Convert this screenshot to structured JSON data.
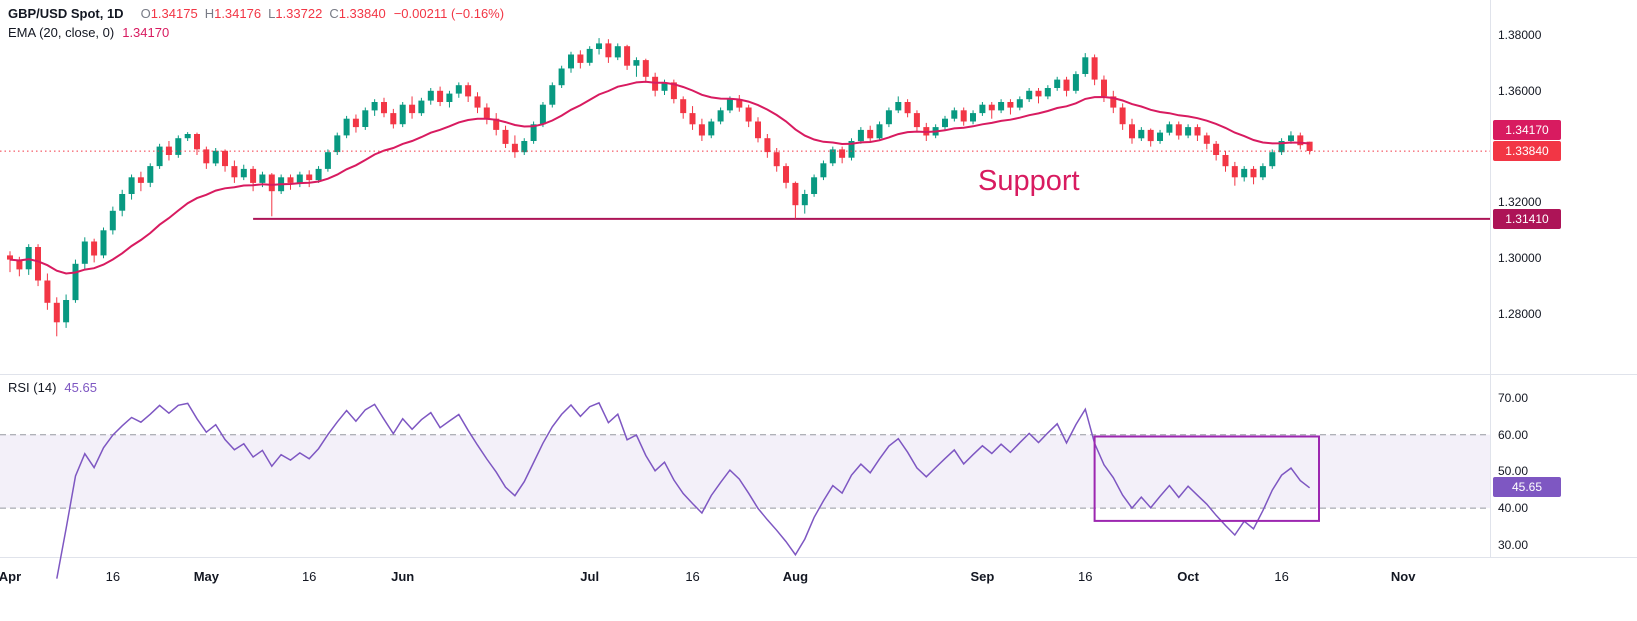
{
  "legend": {
    "title": "GBP/USD Spot, 1D",
    "open_label": "O",
    "open_value": "1.34175",
    "high_label": "H",
    "high_value": "1.34176",
    "low_label": "L",
    "low_value": "1.33722",
    "close_label": "C",
    "close_value": "1.33840",
    "change": "−0.00211 (−0.16%)",
    "ema_title": "EMA (20, close, 0)",
    "ema_value": "1.34170"
  },
  "rsi_legend": {
    "title": "RSI (14)",
    "value": "45.65"
  },
  "badges": {
    "ema": "1.34170",
    "last": "1.33840",
    "support": "1.31410",
    "rsi": "45.65"
  },
  "annotation": {
    "support_label": "Support"
  },
  "colors": {
    "up": "#089981",
    "down": "#f23645",
    "ema": "#d81b60",
    "support": "#ad1457",
    "annotation": "#d81b60",
    "last_price": "#f23645",
    "rsi": "#7e57c2",
    "rsi_band_fill": "rgba(126,87,194,0.09)",
    "rsi_band_line": "#9598a1",
    "box": "#9c27b0",
    "separator": "#e0e3eb",
    "axis_text": "#131722"
  },
  "chart_data": [
    {
      "type": "candlestick",
      "title": "GBP/USD Spot, 1D",
      "pane": "price",
      "grid": false,
      "legend_position": "top-left",
      "ylim": [
        1.259,
        1.3925
      ],
      "y_ticks": [
        "1.38000",
        "1.36000",
        "1.34000",
        "1.32000",
        "1.30000",
        "1.28000"
      ],
      "x_ticks": [
        {
          "label": "Apr",
          "index": 0
        },
        {
          "label": "16",
          "index": 11
        },
        {
          "label": "May",
          "index": 21
        },
        {
          "label": "16",
          "index": 32
        },
        {
          "label": "Jun",
          "index": 42
        },
        {
          "label": "Jul",
          "index": 62
        },
        {
          "label": "16",
          "index": 73
        },
        {
          "label": "Aug",
          "index": 84
        },
        {
          "label": "Sep",
          "index": 104
        },
        {
          "label": "16",
          "index": 115
        },
        {
          "label": "Oct",
          "index": 126
        },
        {
          "label": "16",
          "index": 136
        },
        {
          "label": "Nov",
          "index": 149
        }
      ],
      "overlays": [
        {
          "name": "EMA",
          "period": 20,
          "source": "close",
          "value": 1.3417
        }
      ],
      "levels": {
        "support": 1.3141,
        "support_start_index": 26,
        "last_price": 1.3384
      },
      "ohlc": [
        [
          1.301,
          1.3025,
          1.295,
          1.2995
        ],
        [
          1.2995,
          1.3005,
          1.2935,
          1.296
        ],
        [
          1.296,
          1.305,
          1.294,
          1.304
        ],
        [
          1.304,
          1.305,
          1.29,
          1.292
        ],
        [
          1.292,
          1.2945,
          1.2815,
          1.284
        ],
        [
          1.284,
          1.286,
          1.272,
          1.277
        ],
        [
          1.277,
          1.287,
          1.275,
          1.285
        ],
        [
          1.285,
          1.2995,
          1.284,
          1.298
        ],
        [
          1.298,
          1.3075,
          1.296,
          1.306
        ],
        [
          1.306,
          1.307,
          1.2985,
          1.301
        ],
        [
          1.301,
          1.311,
          1.3,
          1.31
        ],
        [
          1.31,
          1.3185,
          1.3085,
          1.317
        ],
        [
          1.317,
          1.3245,
          1.315,
          1.323
        ],
        [
          1.323,
          1.33,
          1.321,
          1.329
        ],
        [
          1.329,
          1.331,
          1.324,
          1.327
        ],
        [
          1.327,
          1.334,
          1.3255,
          1.333
        ],
        [
          1.333,
          1.341,
          1.332,
          1.34
        ],
        [
          1.34,
          1.342,
          1.335,
          1.337
        ],
        [
          1.337,
          1.344,
          1.336,
          1.343
        ],
        [
          1.343,
          1.3452,
          1.342,
          1.3445
        ],
        [
          1.3445,
          1.345,
          1.337,
          1.339
        ],
        [
          1.339,
          1.34,
          1.332,
          1.334
        ],
        [
          1.334,
          1.3395,
          1.333,
          1.3385
        ],
        [
          1.3385,
          1.339,
          1.331,
          1.333
        ],
        [
          1.333,
          1.335,
          1.327,
          1.329
        ],
        [
          1.329,
          1.3335,
          1.328,
          1.332
        ],
        [
          1.332,
          1.333,
          1.324,
          1.327
        ],
        [
          1.327,
          1.331,
          1.3255,
          1.33
        ],
        [
          1.33,
          1.3305,
          1.315,
          1.324
        ],
        [
          1.324,
          1.33,
          1.323,
          1.329
        ],
        [
          1.329,
          1.33,
          1.3245,
          1.327
        ],
        [
          1.327,
          1.331,
          1.3255,
          1.33
        ],
        [
          1.33,
          1.3315,
          1.3255,
          1.328
        ],
        [
          1.328,
          1.333,
          1.327,
          1.332
        ],
        [
          1.332,
          1.339,
          1.331,
          1.338
        ],
        [
          1.338,
          1.345,
          1.337,
          1.344
        ],
        [
          1.344,
          1.351,
          1.343,
          1.35
        ],
        [
          1.35,
          1.3515,
          1.345,
          1.347
        ],
        [
          1.347,
          1.354,
          1.346,
          1.353
        ],
        [
          1.353,
          1.357,
          1.351,
          1.356
        ],
        [
          1.356,
          1.3575,
          1.3505,
          1.352
        ],
        [
          1.352,
          1.3535,
          1.3465,
          1.348
        ],
        [
          1.348,
          1.356,
          1.347,
          1.355
        ],
        [
          1.355,
          1.358,
          1.35,
          1.352
        ],
        [
          1.352,
          1.3575,
          1.351,
          1.3565
        ],
        [
          1.3565,
          1.361,
          1.355,
          1.36
        ],
        [
          1.36,
          1.3615,
          1.3545,
          1.356
        ],
        [
          1.356,
          1.36,
          1.354,
          1.359
        ],
        [
          1.359,
          1.363,
          1.3575,
          1.362
        ],
        [
          1.362,
          1.363,
          1.356,
          1.358
        ],
        [
          1.358,
          1.3595,
          1.352,
          1.354
        ],
        [
          1.354,
          1.3555,
          1.348,
          1.35
        ],
        [
          1.35,
          1.352,
          1.344,
          1.346
        ],
        [
          1.346,
          1.3475,
          1.3395,
          1.341
        ],
        [
          1.341,
          1.344,
          1.336,
          1.338
        ],
        [
          1.338,
          1.343,
          1.337,
          1.342
        ],
        [
          1.342,
          1.349,
          1.341,
          1.348
        ],
        [
          1.348,
          1.356,
          1.347,
          1.355
        ],
        [
          1.355,
          1.363,
          1.354,
          1.362
        ],
        [
          1.362,
          1.369,
          1.361,
          1.368
        ],
        [
          1.368,
          1.374,
          1.3665,
          1.373
        ],
        [
          1.373,
          1.3745,
          1.368,
          1.37
        ],
        [
          1.37,
          1.376,
          1.369,
          1.375
        ],
        [
          1.375,
          1.3789,
          1.373,
          1.377
        ],
        [
          1.377,
          1.3785,
          1.37,
          1.372
        ],
        [
          1.372,
          1.377,
          1.371,
          1.376
        ],
        [
          1.376,
          1.3765,
          1.3675,
          1.369
        ],
        [
          1.369,
          1.372,
          1.365,
          1.371
        ],
        [
          1.371,
          1.3715,
          1.363,
          1.365
        ],
        [
          1.365,
          1.3665,
          1.358,
          1.36
        ],
        [
          1.36,
          1.364,
          1.3585,
          1.363
        ],
        [
          1.363,
          1.364,
          1.3555,
          1.357
        ],
        [
          1.357,
          1.358,
          1.35,
          1.352
        ],
        [
          1.352,
          1.3545,
          1.346,
          1.348
        ],
        [
          1.348,
          1.35,
          1.342,
          1.344
        ],
        [
          1.344,
          1.35,
          1.343,
          1.349
        ],
        [
          1.349,
          1.354,
          1.348,
          1.353
        ],
        [
          1.353,
          1.358,
          1.352,
          1.357
        ],
        [
          1.357,
          1.3585,
          1.3525,
          1.354
        ],
        [
          1.354,
          1.355,
          1.347,
          1.349
        ],
        [
          1.349,
          1.3505,
          1.3415,
          1.343
        ],
        [
          1.343,
          1.3445,
          1.336,
          1.338
        ],
        [
          1.338,
          1.3395,
          1.331,
          1.333
        ],
        [
          1.333,
          1.334,
          1.325,
          1.327
        ],
        [
          1.327,
          1.3275,
          1.3142,
          1.319
        ],
        [
          1.319,
          1.3245,
          1.316,
          1.323
        ],
        [
          1.323,
          1.33,
          1.322,
          1.329
        ],
        [
          1.329,
          1.335,
          1.328,
          1.334
        ],
        [
          1.334,
          1.34,
          1.333,
          1.339
        ],
        [
          1.339,
          1.34,
          1.334,
          1.336
        ],
        [
          1.336,
          1.343,
          1.335,
          1.342
        ],
        [
          1.342,
          1.347,
          1.341,
          1.346
        ],
        [
          1.346,
          1.3475,
          1.3415,
          1.343
        ],
        [
          1.343,
          1.349,
          1.342,
          1.348
        ],
        [
          1.348,
          1.354,
          1.347,
          1.353
        ],
        [
          1.353,
          1.358,
          1.352,
          1.356
        ],
        [
          1.356,
          1.357,
          1.3505,
          1.352
        ],
        [
          1.352,
          1.353,
          1.3455,
          1.347
        ],
        [
          1.347,
          1.3485,
          1.342,
          1.344
        ],
        [
          1.344,
          1.348,
          1.343,
          1.347
        ],
        [
          1.347,
          1.351,
          1.346,
          1.35
        ],
        [
          1.35,
          1.354,
          1.349,
          1.353
        ],
        [
          1.353,
          1.354,
          1.3475,
          1.349
        ],
        [
          1.349,
          1.353,
          1.348,
          1.352
        ],
        [
          1.352,
          1.356,
          1.351,
          1.355
        ],
        [
          1.355,
          1.356,
          1.35,
          1.353
        ],
        [
          1.353,
          1.357,
          1.352,
          1.356
        ],
        [
          1.356,
          1.357,
          1.3515,
          1.354
        ],
        [
          1.354,
          1.358,
          1.353,
          1.357
        ],
        [
          1.357,
          1.361,
          1.356,
          1.36
        ],
        [
          1.36,
          1.361,
          1.3555,
          1.358
        ],
        [
          1.358,
          1.362,
          1.357,
          1.361
        ],
        [
          1.361,
          1.365,
          1.36,
          1.364
        ],
        [
          1.364,
          1.365,
          1.358,
          1.36
        ],
        [
          1.36,
          1.367,
          1.359,
          1.366
        ],
        [
          1.366,
          1.3735,
          1.365,
          1.372
        ],
        [
          1.372,
          1.373,
          1.362,
          1.364
        ],
        [
          1.364,
          1.3655,
          1.356,
          1.358
        ],
        [
          1.358,
          1.36,
          1.352,
          1.354
        ],
        [
          1.354,
          1.3555,
          1.346,
          1.348
        ],
        [
          1.348,
          1.35,
          1.341,
          1.343
        ],
        [
          1.343,
          1.347,
          1.342,
          1.346
        ],
        [
          1.346,
          1.3465,
          1.34,
          1.342
        ],
        [
          1.342,
          1.346,
          1.341,
          1.345
        ],
        [
          1.345,
          1.349,
          1.344,
          1.348
        ],
        [
          1.348,
          1.349,
          1.3425,
          1.344
        ],
        [
          1.344,
          1.348,
          1.343,
          1.347
        ],
        [
          1.347,
          1.348,
          1.342,
          1.344
        ],
        [
          1.344,
          1.345,
          1.339,
          1.341
        ],
        [
          1.341,
          1.342,
          1.335,
          1.337
        ],
        [
          1.337,
          1.3385,
          1.331,
          1.333
        ],
        [
          1.333,
          1.3345,
          1.326,
          1.329
        ],
        [
          1.329,
          1.333,
          1.3275,
          1.332
        ],
        [
          1.332,
          1.333,
          1.3265,
          1.329
        ],
        [
          1.329,
          1.334,
          1.328,
          1.333
        ],
        [
          1.333,
          1.339,
          1.332,
          1.338
        ],
        [
          1.338,
          1.343,
          1.337,
          1.342
        ],
        [
          1.342,
          1.3455,
          1.341,
          1.344
        ],
        [
          1.344,
          1.345,
          1.339,
          1.3405
        ],
        [
          1.34175,
          1.34176,
          1.33722,
          1.3384
        ]
      ]
    },
    {
      "type": "line",
      "title": "RSI (14)",
      "pane": "rsi",
      "period": 14,
      "derived_from": "close",
      "last_value": 45.65,
      "ylim": [
        27,
        76.5
      ],
      "y_ticks": [
        "70.00",
        "60.00",
        "50.00",
        "40.00",
        "30.00"
      ],
      "bands": {
        "upper": 60,
        "lower": 40
      },
      "box_annotation": {
        "start_index": 116,
        "end_index": 140,
        "top": 59.5,
        "bottom": 36.5
      }
    }
  ]
}
